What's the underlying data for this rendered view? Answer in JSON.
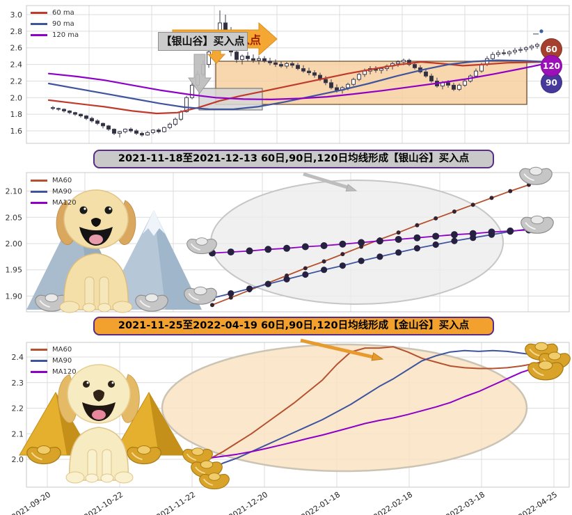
{
  "chart_data": [
    {
      "type": "candlestick",
      "legend": [
        {
          "label": "60 ma",
          "color": "#c0392b"
        },
        {
          "label": "90 ma",
          "color": "#3e549e"
        },
        {
          "label": "120 ma",
          "color": "#8e00c8"
        }
      ],
      "y_ticks": [
        "3.0",
        "2.8",
        "2.6",
        "2.4",
        "2.2",
        "2.0",
        "1.8",
        "1.6"
      ],
      "ylim": [
        1.45,
        3.12
      ],
      "grid": true,
      "annotation": {
        "box_label": "【银山谷】买入点",
        "arrow_label": "【银山谷】买入点"
      },
      "badges": [
        {
          "label": "60",
          "color": "#a6402e"
        },
        {
          "label": "120",
          "color": "#9c10b8"
        },
        {
          "label": "90",
          "color": "#46399b"
        }
      ],
      "last_point": 2.8,
      "candles": [
        [
          1.88,
          1.9,
          1.85,
          1.87
        ],
        [
          1.87,
          1.88,
          1.84,
          1.86
        ],
        [
          1.86,
          1.87,
          1.82,
          1.84
        ],
        [
          1.84,
          1.85,
          1.8,
          1.82
        ],
        [
          1.82,
          1.83,
          1.78,
          1.8
        ],
        [
          1.8,
          1.81,
          1.76,
          1.78
        ],
        [
          1.78,
          1.79,
          1.73,
          1.75
        ],
        [
          1.75,
          1.77,
          1.7,
          1.72
        ],
        [
          1.72,
          1.74,
          1.67,
          1.69
        ],
        [
          1.69,
          1.7,
          1.63,
          1.66
        ],
        [
          1.66,
          1.67,
          1.6,
          1.62
        ],
        [
          1.62,
          1.63,
          1.55,
          1.57
        ],
        [
          1.57,
          1.6,
          1.52,
          1.59
        ],
        [
          1.59,
          1.63,
          1.57,
          1.62
        ],
        [
          1.62,
          1.64,
          1.58,
          1.6
        ],
        [
          1.6,
          1.62,
          1.55,
          1.57
        ],
        [
          1.57,
          1.59,
          1.53,
          1.55
        ],
        [
          1.55,
          1.6,
          1.54,
          1.58
        ],
        [
          1.58,
          1.62,
          1.56,
          1.61
        ],
        [
          1.61,
          1.63,
          1.57,
          1.59
        ],
        [
          1.59,
          1.65,
          1.58,
          1.64
        ],
        [
          1.64,
          1.7,
          1.62,
          1.68
        ],
        [
          1.68,
          1.76,
          1.66,
          1.74
        ],
        [
          1.74,
          1.85,
          1.72,
          1.83
        ],
        [
          1.83,
          2.02,
          1.82,
          2.0
        ],
        [
          2.0,
          2.18,
          1.98,
          2.15
        ],
        [
          2.15,
          2.32,
          2.12,
          2.28
        ],
        [
          2.28,
          2.45,
          2.25,
          2.4
        ],
        [
          2.4,
          2.6,
          2.36,
          2.55
        ],
        [
          2.55,
          2.8,
          2.5,
          2.6
        ],
        [
          2.6,
          3.05,
          2.55,
          2.9
        ],
        [
          2.9,
          3.0,
          2.7,
          2.78
        ],
        [
          2.78,
          2.85,
          2.5,
          2.55
        ],
        [
          2.55,
          2.62,
          2.42,
          2.46
        ],
        [
          2.46,
          2.52,
          2.4,
          2.5
        ],
        [
          2.5,
          2.55,
          2.44,
          2.47
        ],
        [
          2.47,
          2.52,
          2.42,
          2.45
        ],
        [
          2.45,
          2.5,
          2.4,
          2.47
        ],
        [
          2.47,
          2.5,
          2.42,
          2.44
        ],
        [
          2.44,
          2.48,
          2.39,
          2.42
        ],
        [
          2.42,
          2.46,
          2.37,
          2.4
        ],
        [
          2.4,
          2.44,
          2.36,
          2.38
        ],
        [
          2.38,
          2.43,
          2.35,
          2.41
        ],
        [
          2.41,
          2.44,
          2.36,
          2.39
        ],
        [
          2.39,
          2.42,
          2.33,
          2.35
        ],
        [
          2.35,
          2.39,
          2.3,
          2.32
        ],
        [
          2.32,
          2.36,
          2.27,
          2.3
        ],
        [
          2.3,
          2.33,
          2.24,
          2.27
        ],
        [
          2.27,
          2.3,
          2.2,
          2.22
        ],
        [
          2.22,
          2.26,
          2.15,
          2.18
        ],
        [
          2.18,
          2.22,
          2.1,
          2.12
        ],
        [
          2.12,
          2.16,
          2.06,
          2.09
        ],
        [
          2.09,
          2.14,
          2.05,
          2.12
        ],
        [
          2.12,
          2.18,
          2.09,
          2.16
        ],
        [
          2.16,
          2.24,
          2.14,
          2.22
        ],
        [
          2.22,
          2.3,
          2.2,
          2.28
        ],
        [
          2.28,
          2.35,
          2.25,
          2.32
        ],
        [
          2.32,
          2.38,
          2.28,
          2.35
        ],
        [
          2.35,
          2.38,
          2.3,
          2.33
        ],
        [
          2.33,
          2.37,
          2.29,
          2.35
        ],
        [
          2.35,
          2.4,
          2.32,
          2.38
        ],
        [
          2.38,
          2.43,
          2.34,
          2.41
        ],
        [
          2.41,
          2.45,
          2.37,
          2.43
        ],
        [
          2.43,
          2.47,
          2.39,
          2.45
        ],
        [
          2.45,
          2.47,
          2.38,
          2.4
        ],
        [
          2.4,
          2.43,
          2.34,
          2.36
        ],
        [
          2.36,
          2.39,
          2.29,
          2.31
        ],
        [
          2.31,
          2.34,
          2.24,
          2.26
        ],
        [
          2.26,
          2.29,
          2.18,
          2.2
        ],
        [
          2.2,
          2.24,
          2.12,
          2.14
        ],
        [
          2.14,
          2.2,
          2.1,
          2.18
        ],
        [
          2.18,
          2.21,
          2.12,
          2.15
        ],
        [
          2.15,
          2.18,
          2.08,
          2.1
        ],
        [
          2.1,
          2.17,
          2.08,
          2.15
        ],
        [
          2.15,
          2.22,
          2.13,
          2.2
        ],
        [
          2.2,
          2.28,
          2.18,
          2.26
        ],
        [
          2.26,
          2.35,
          2.24,
          2.32
        ],
        [
          2.32,
          2.42,
          2.3,
          2.4
        ],
        [
          2.4,
          2.5,
          2.38,
          2.47
        ],
        [
          2.47,
          2.55,
          2.44,
          2.52
        ],
        [
          2.52,
          2.57,
          2.49,
          2.54
        ],
        [
          2.54,
          2.58,
          2.51,
          2.53
        ],
        [
          2.53,
          2.57,
          2.5,
          2.55
        ],
        [
          2.55,
          2.6,
          2.52,
          2.57
        ],
        [
          2.57,
          2.61,
          2.54,
          2.58
        ],
        [
          2.58,
          2.62,
          2.55,
          2.6
        ],
        [
          2.6,
          2.64,
          2.57,
          2.62
        ],
        [
          2.62,
          2.66,
          2.59,
          2.64
        ]
      ],
      "ma_series": [
        {
          "name": "60 ma",
          "color": "#c0392b",
          "points": [
            [
              70,
              1.97
            ],
            [
              110,
              1.93
            ],
            [
              150,
              1.89
            ],
            [
              190,
              1.84
            ],
            [
              225,
              1.81
            ],
            [
              255,
              1.82
            ],
            [
              285,
              1.88
            ],
            [
              315,
              1.96
            ],
            [
              345,
              2.02
            ],
            [
              380,
              2.08
            ],
            [
              420,
              2.15
            ],
            [
              460,
              2.22
            ],
            [
              500,
              2.29
            ],
            [
              540,
              2.35
            ],
            [
              575,
              2.4
            ],
            [
              605,
              2.43
            ],
            [
              635,
              2.41
            ],
            [
              665,
              2.385
            ],
            [
              695,
              2.4
            ],
            [
              730,
              2.42
            ],
            [
              790,
              2.43
            ]
          ]
        },
        {
          "name": "90 ma",
          "color": "#3e549e",
          "points": [
            [
              70,
              2.17
            ],
            [
              110,
              2.11
            ],
            [
              150,
              2.05
            ],
            [
              190,
              1.99
            ],
            [
              230,
              1.93
            ],
            [
              265,
              1.885
            ],
            [
              300,
              1.862
            ],
            [
              335,
              1.86
            ],
            [
              370,
              1.89
            ],
            [
              410,
              1.95
            ],
            [
              450,
              2.02
            ],
            [
              490,
              2.09
            ],
            [
              530,
              2.17
            ],
            [
              570,
              2.26
            ],
            [
              610,
              2.34
            ],
            [
              645,
              2.4
            ],
            [
              680,
              2.435
            ],
            [
              715,
              2.45
            ],
            [
              750,
              2.445
            ],
            [
              790,
              2.43
            ]
          ]
        },
        {
          "name": "120 ma",
          "color": "#8e00c8",
          "points": [
            [
              70,
              2.29
            ],
            [
              110,
              2.255
            ],
            [
              150,
              2.21
            ],
            [
              190,
              2.15
            ],
            [
              230,
              2.09
            ],
            [
              270,
              2.04
            ],
            [
              310,
              2.0
            ],
            [
              350,
              1.982
            ],
            [
              390,
              1.978
            ],
            [
              430,
              1.99
            ],
            [
              470,
              2.01
            ],
            [
              510,
              2.045
            ],
            [
              550,
              2.085
            ],
            [
              590,
              2.13
            ],
            [
              630,
              2.175
            ],
            [
              670,
              2.225
            ],
            [
              710,
              2.285
            ],
            [
              750,
              2.35
            ],
            [
              790,
              2.42
            ]
          ]
        }
      ]
    },
    {
      "type": "line",
      "title": "2021-11-18至2021-12-13 60日,90日,120日均线形成【银山谷】买入点",
      "y_ticks": [
        "2.10",
        "2.05",
        "2.00",
        "1.95",
        "1.90"
      ],
      "ylim": [
        1.87,
        2.13
      ],
      "grid": true,
      "legend": [
        {
          "label": "MA60",
          "color": "#b5512f"
        },
        {
          "label": "MA90",
          "color": "#3e549e"
        },
        {
          "label": "MA120",
          "color": "#8e00c8"
        }
      ],
      "series": [
        {
          "name": "MA60",
          "color": "#b5512f",
          "marker_r": 3,
          "marker_color": "#38222e",
          "values": [
            1.883,
            1.897,
            1.911,
            1.925,
            1.939,
            1.953,
            1.966,
            1.98,
            1.994,
            2.008,
            2.021,
            2.035,
            2.048,
            2.061,
            2.074,
            2.087,
            2.1,
            2.112
          ]
        },
        {
          "name": "MA90",
          "color": "#3e549e",
          "marker_r": 4.6,
          "marker_color": "#262140",
          "values": [
            1.896,
            1.905,
            1.914,
            1.923,
            1.932,
            1.941,
            1.95,
            1.958,
            1.967,
            1.975,
            1.983,
            1.991,
            1.998,
            2.005,
            2.011,
            2.017,
            2.023,
            2.028
          ]
        },
        {
          "name": "MA120",
          "color": "#8e00c8",
          "marker_r": 5,
          "marker_color": "#262140",
          "values": [
            1.982,
            1.984,
            1.986,
            1.989,
            1.991,
            1.994,
            1.996,
            1.999,
            2.002,
            2.005,
            2.008,
            2.011,
            2.014,
            2.017,
            2.019,
            2.022,
            2.024,
            2.026
          ]
        }
      ]
    },
    {
      "type": "line",
      "title": "2021-11-25至2022-04-19 60日,90日,120日均线形成【金山谷】买入点",
      "y_ticks": [
        "2.4",
        "2.3",
        "2.2",
        "2.1",
        "2.0"
      ],
      "x_ticks": [
        "2021-09-20",
        "2021-10-22",
        "2021-11-22",
        "2021-12-20",
        "2022-01-18",
        "2022-02-18",
        "2022-03-18",
        "2022-04-25"
      ],
      "ylim": [
        1.93,
        2.47
      ],
      "grid": true,
      "legend": [
        {
          "label": "MA60",
          "color": "#b5512f"
        },
        {
          "label": "MA90",
          "color": "#3e549e"
        },
        {
          "label": "MA120",
          "color": "#8e00c8"
        }
      ],
      "series": [
        {
          "name": "MA60",
          "color": "#b5512f",
          "values": [
            2.0,
            2.03,
            2.065,
            2.1,
            2.14,
            2.18,
            2.22,
            2.265,
            2.31,
            2.37,
            2.42,
            2.435,
            2.435,
            2.44,
            2.42,
            2.395,
            2.38,
            2.365,
            2.358,
            2.355,
            2.355,
            2.358,
            2.365,
            2.375,
            2.39
          ]
        },
        {
          "name": "MA90",
          "color": "#3e549e",
          "values": [
            1.955,
            1.985,
            2.005,
            2.03,
            2.055,
            2.08,
            2.105,
            2.13,
            2.155,
            2.185,
            2.215,
            2.25,
            2.285,
            2.315,
            2.35,
            2.385,
            2.405,
            2.42,
            2.425,
            2.422,
            2.425,
            2.422,
            2.415,
            2.408,
            2.41
          ]
        },
        {
          "name": "MA120",
          "color": "#8e00c8",
          "values": [
            2.005,
            2.012,
            2.02,
            2.03,
            2.042,
            2.055,
            2.068,
            2.082,
            2.095,
            2.11,
            2.125,
            2.14,
            2.152,
            2.162,
            2.175,
            2.19,
            2.205,
            2.222,
            2.245,
            2.265,
            2.29,
            2.315,
            2.34,
            2.358,
            2.375
          ]
        }
      ]
    }
  ]
}
